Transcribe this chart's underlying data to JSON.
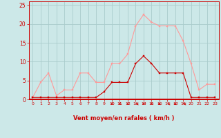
{
  "x": [
    0,
    1,
    2,
    3,
    4,
    5,
    6,
    7,
    8,
    9,
    10,
    11,
    12,
    13,
    14,
    15,
    16,
    17,
    18,
    19,
    20,
    21,
    22,
    23
  ],
  "rafales": [
    0.5,
    4.5,
    7,
    1,
    2.5,
    2.5,
    7,
    7,
    4.5,
    4.5,
    9.5,
    9.5,
    12,
    19.5,
    22.5,
    20.5,
    19.5,
    19.5,
    19.5,
    15.5,
    9.5,
    2.5,
    4,
    4
  ],
  "moyen": [
    0.5,
    0.5,
    0.5,
    0.5,
    0.5,
    0.5,
    0.5,
    0.5,
    0.5,
    2,
    4.5,
    4.5,
    4.5,
    9.5,
    11.5,
    9.5,
    7,
    7,
    7,
    7,
    0.5,
    0.5,
    0.5,
    0.5
  ],
  "bg_color": "#cce8e8",
  "grid_color": "#aacccc",
  "rafales_color": "#ff9999",
  "moyen_color": "#cc0000",
  "xlabel": "Vent moyen/en rafales ( km/h )",
  "ylim": [
    0,
    26
  ],
  "xlim": [
    -0.5,
    23.5
  ],
  "yticks": [
    0,
    5,
    10,
    15,
    20,
    25
  ],
  "xticks": [
    0,
    1,
    2,
    3,
    4,
    5,
    6,
    7,
    8,
    9,
    10,
    11,
    12,
    13,
    14,
    15,
    16,
    17,
    18,
    19,
    20,
    21,
    22,
    23
  ],
  "arrow_hours": [
    10,
    11,
    12,
    13,
    14,
    15,
    16,
    17,
    18,
    19
  ],
  "arrow_angles_deg": [
    225,
    225,
    225,
    270,
    225,
    225,
    247,
    270,
    247,
    270
  ]
}
